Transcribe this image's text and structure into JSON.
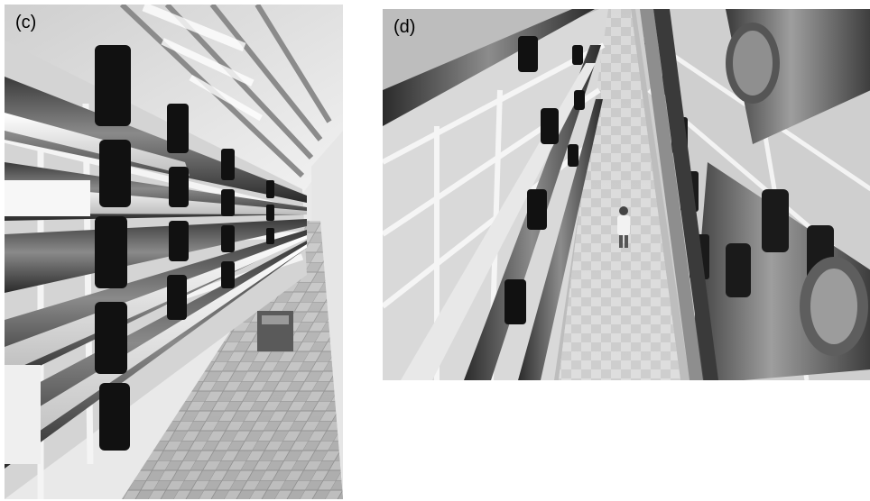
{
  "panels": [
    {
      "label": "(c)",
      "image": "accelerator-tunnel-photo-c"
    },
    {
      "label": "(d)",
      "image": "accelerator-tunnel-photo-d"
    }
  ]
}
